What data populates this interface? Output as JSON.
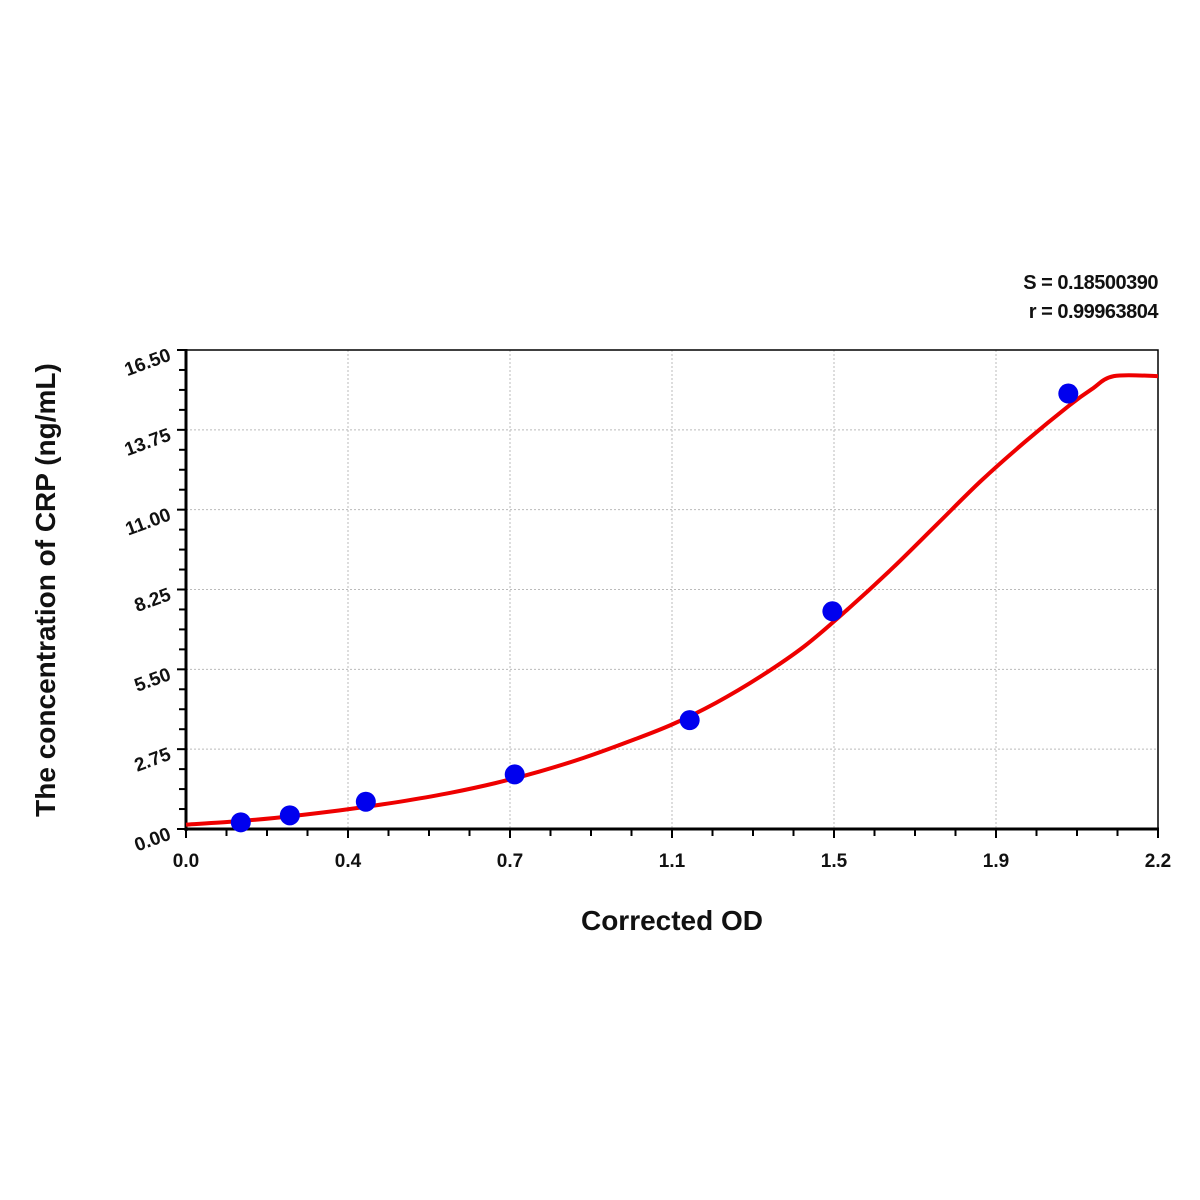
{
  "chart_data": {
    "type": "scatter",
    "title": "",
    "xlabel": "Corrected OD",
    "ylabel": "The concentration of CRP (ng/mL)",
    "xlim": [
      0.0,
      2.2
    ],
    "ylim": [
      0.0,
      16.5
    ],
    "x_tick_labels": [
      "0.0",
      "0.4",
      "0.7",
      "1.1",
      "1.5",
      "1.9",
      "2.2"
    ],
    "y_tick_labels": [
      "0.00",
      "2.75",
      "5.50",
      "8.25",
      "11.00",
      "13.75",
      "16.50"
    ],
    "grid": true,
    "annotations": [
      "S = 0.18500390",
      "r = 0.99963804"
    ],
    "colors": {
      "points": "#0000ee",
      "curve": "#ee0000"
    },
    "points": {
      "x": [
        0.124,
        0.235,
        0.407,
        0.744,
        1.14,
        1.463,
        1.997
      ],
      "y": [
        0.23,
        0.47,
        0.94,
        1.88,
        3.75,
        7.5,
        15.0
      ]
    },
    "fitted_curve": {
      "x": [
        0.0,
        0.1,
        0.2,
        0.3,
        0.4,
        0.5,
        0.6,
        0.7,
        0.8,
        0.9,
        1.0,
        1.1,
        1.2,
        1.3,
        1.4,
        1.5,
        1.6,
        1.7,
        1.8,
        1.9,
        2.0,
        2.05,
        2.1,
        2.2
      ],
      "y": [
        0.15,
        0.25,
        0.38,
        0.55,
        0.75,
        0.98,
        1.25,
        1.58,
        1.98,
        2.45,
        3.0,
        3.6,
        4.35,
        5.25,
        6.3,
        7.6,
        9.0,
        10.5,
        12.0,
        13.35,
        14.6,
        15.15,
        15.6,
        15.6
      ]
    }
  }
}
